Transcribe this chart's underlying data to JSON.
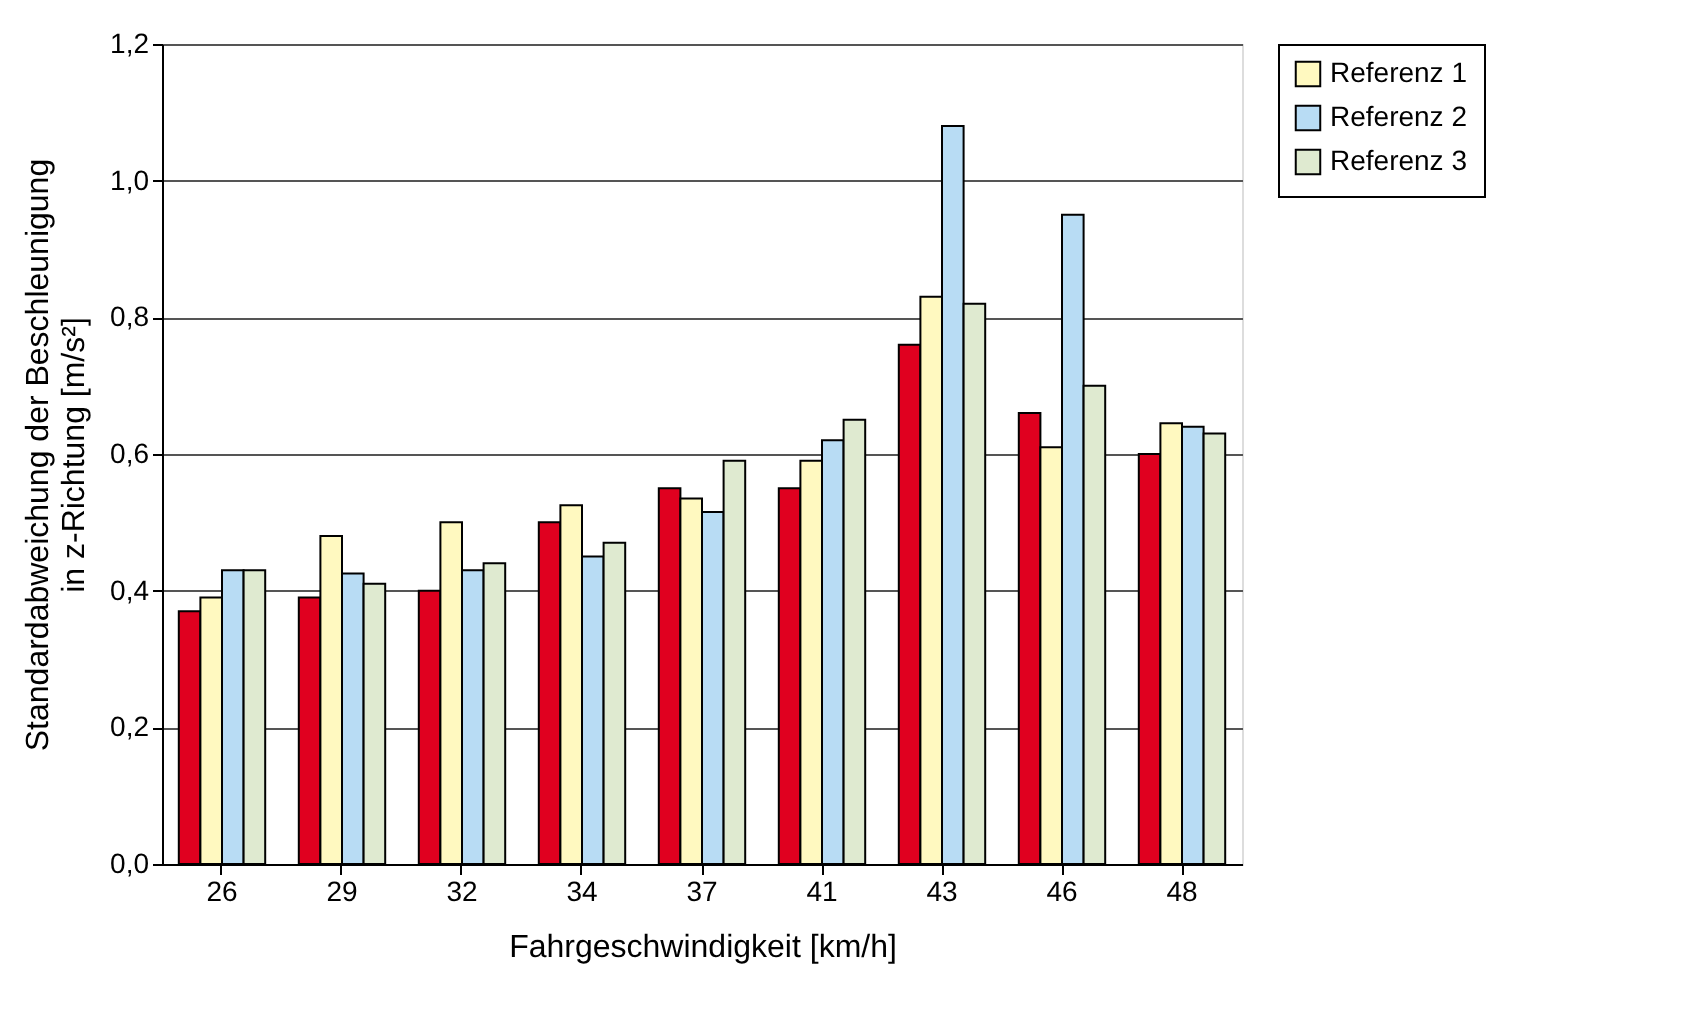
{
  "chart_data": {
    "type": "bar",
    "xlabel": "Fahrgeschwindigkeit [km/h]",
    "ylabel": "Standardabweichung der Beschleunigung\nin z-Richtung [m/s²]",
    "categories": [
      "26",
      "29",
      "32",
      "34",
      "37",
      "41",
      "43",
      "46",
      "48"
    ],
    "series": [
      {
        "color": "#e0001f",
        "values": [
          0.37,
          0.39,
          0.4,
          0.5,
          0.55,
          0.55,
          0.76,
          0.66,
          0.6
        ]
      },
      {
        "name": "Referenz 1",
        "color": "#fff9c0",
        "values": [
          0.39,
          0.48,
          0.5,
          0.525,
          0.535,
          0.59,
          0.83,
          0.61,
          0.645
        ]
      },
      {
        "name": "Referenz 2",
        "color": "#b8dcf4",
        "values": [
          0.43,
          0.425,
          0.43,
          0.45,
          0.515,
          0.62,
          1.08,
          0.95,
          0.64
        ]
      },
      {
        "name": "Referenz 3",
        "color": "#dfead0",
        "values": [
          0.43,
          0.41,
          0.44,
          0.47,
          0.59,
          0.65,
          0.82,
          0.7,
          0.63
        ]
      }
    ],
    "ylim": [
      0,
      1.2
    ],
    "yticks": [
      {
        "value": 0,
        "label": "0,0"
      },
      {
        "value": 0.2,
        "label": "0,2"
      },
      {
        "value": 0.4,
        "label": "0,4"
      },
      {
        "value": 0.6,
        "label": "0,6"
      },
      {
        "value": 0.8,
        "label": "0,8"
      },
      {
        "value": 1.0,
        "label": "1,0"
      },
      {
        "value": 1.2,
        "label": "1,2"
      }
    ],
    "grid": "y",
    "legend": "top right"
  }
}
